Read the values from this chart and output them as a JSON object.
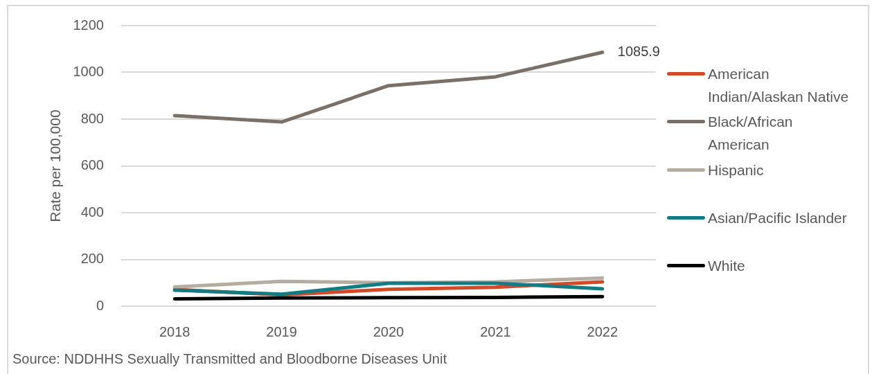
{
  "chart_data": {
    "type": "line",
    "ylabel": "Rate per 100,000",
    "categories": [
      "2018",
      "2019",
      "2020",
      "2021",
      "2022"
    ],
    "series": [
      {
        "name": "American Indian/Alaskan Native",
        "color": "#d24a28",
        "values": [
          71,
          48,
          72,
          81,
          104
        ]
      },
      {
        "name": "Black/African American",
        "color": "#7b7068",
        "values": [
          815,
          788,
          943,
          981,
          1085.9
        ],
        "value_labels": [
          null,
          null,
          null,
          null,
          "1085.9"
        ]
      },
      {
        "name": "Hispanic",
        "color": "#b5ada0",
        "values": [
          82,
          106,
          100,
          104,
          120
        ]
      },
      {
        "name": "Asian/Pacific Islander",
        "color": "#137b83",
        "values": [
          68,
          51,
          98,
          98,
          74
        ]
      },
      {
        "name": "White",
        "color": "#000000",
        "values": [
          31,
          35,
          36,
          37,
          41
        ]
      }
    ],
    "ylim": [
      0,
      1200
    ],
    "yticks": [
      0,
      200,
      400,
      600,
      800,
      1000,
      1200
    ],
    "grid": "y",
    "legend": "right",
    "marker": "none",
    "line_style": "solid",
    "annotations": [
      "Source: NDDHHS Sexually Transmitted and Bloodborne Diseases Unit"
    ]
  }
}
